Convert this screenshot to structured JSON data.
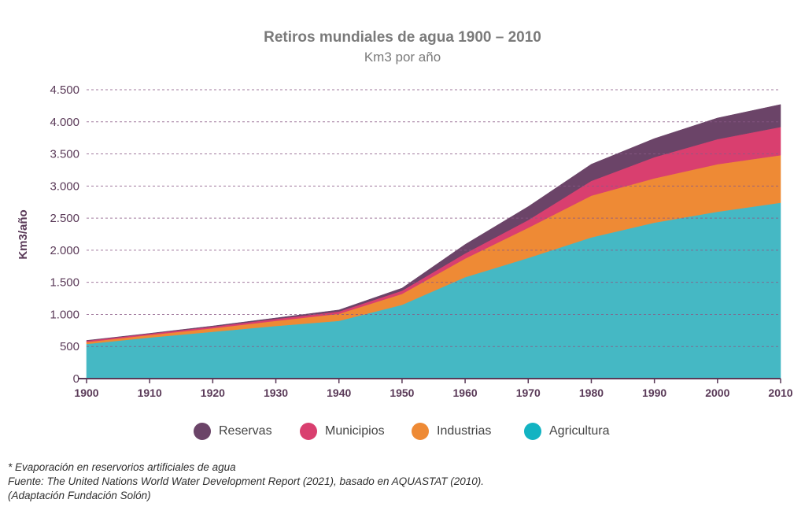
{
  "header": {
    "title": "Retiros mundiales de agua 1900 – 2010",
    "subtitle": "Km3 por año"
  },
  "chart_data": {
    "type": "area",
    "stacked": true,
    "ylabel": "Km3/año",
    "x": [
      1900,
      1910,
      1920,
      1930,
      1940,
      1950,
      1960,
      1970,
      1980,
      1990,
      2000,
      2010
    ],
    "x_tick_labels": [
      "1900",
      "1910",
      "1920",
      "1930",
      "1940",
      "1950",
      "1960",
      "1970",
      "1980",
      "1990",
      "2000",
      "2010"
    ],
    "ylim": [
      0,
      4500
    ],
    "y_ticks": [
      0,
      500,
      1000,
      1500,
      2000,
      2500,
      3000,
      3500,
      4000,
      4500
    ],
    "y_tick_labels": [
      "0",
      "500",
      "1.000",
      "1.500",
      "2.000",
      "2.500",
      "3.000",
      "3.500",
      "4.000",
      "4.500"
    ],
    "grid": "horizontal dashed",
    "legend_placement": "bottom",
    "series": [
      {
        "name": "Agricultura",
        "color": "#45b8c4",
        "values": [
          540,
          640,
          730,
          820,
          900,
          1150,
          1580,
          1880,
          2200,
          2430,
          2600,
          2740
        ]
      },
      {
        "name": "Industrias",
        "color": "#ee8a35",
        "values": [
          30,
          40,
          55,
          80,
          110,
          170,
          290,
          470,
          650,
          690,
          740,
          740
        ]
      },
      {
        "name": "Municipios",
        "color": "#d93f6f",
        "values": [
          20,
          20,
          25,
          30,
          35,
          50,
          80,
          120,
          230,
          330,
          390,
          440
        ]
      },
      {
        "name": "Reservas",
        "color": "#6b4468",
        "values": [
          5,
          5,
          10,
          15,
          25,
          40,
          140,
          210,
          260,
          290,
          330,
          350
        ]
      }
    ],
    "legend_order": [
      "Reservas",
      "Municipios",
      "Industrias",
      "Agricultura"
    ]
  },
  "notes": {
    "line1": "* Evaporación en reservorios artificiales de agua",
    "line2": "Fuente: The United Nations World Water Development Report (2021), basado en AQUASTAT (2010).",
    "line3": "(Adaptación Fundación Solón)"
  }
}
